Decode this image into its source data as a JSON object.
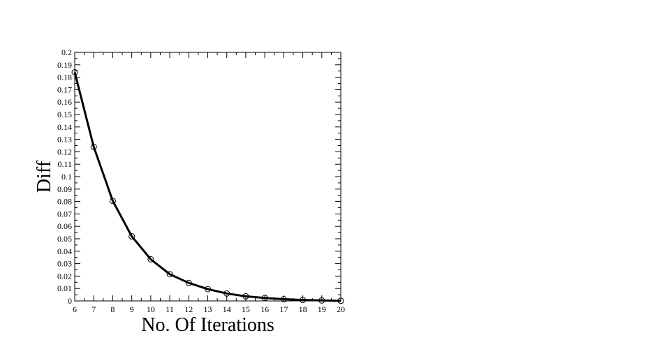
{
  "chart_data": {
    "type": "line",
    "title": "",
    "xlabel": "No. Of Iterations",
    "ylabel": "Diff",
    "xlim": [
      6,
      20
    ],
    "ylim": [
      0,
      0.2
    ],
    "x_ticks": [
      6,
      7,
      8,
      9,
      10,
      11,
      12,
      13,
      14,
      15,
      16,
      17,
      18,
      19,
      20
    ],
    "y_ticks": [
      0,
      0.01,
      0.02,
      0.03,
      0.04,
      0.05,
      0.06,
      0.07,
      0.08,
      0.09,
      0.1,
      0.11,
      0.12,
      0.13,
      0.14,
      0.15,
      0.16,
      0.17,
      0.18,
      0.19,
      0.2
    ],
    "grid": false,
    "legend": "none",
    "marker": "open-circle",
    "line_color": "#000000",
    "series": [
      {
        "x": [
          6,
          7,
          8,
          9,
          10,
          11,
          12,
          13,
          14,
          15,
          16,
          17,
          18,
          19,
          20
        ],
        "y": [
          0.184,
          0.124,
          0.0805,
          0.052,
          0.0335,
          0.0215,
          0.0145,
          0.0095,
          0.006,
          0.0037,
          0.0024,
          0.0014,
          0.0008,
          0.0004,
          0.0001
        ]
      }
    ]
  }
}
